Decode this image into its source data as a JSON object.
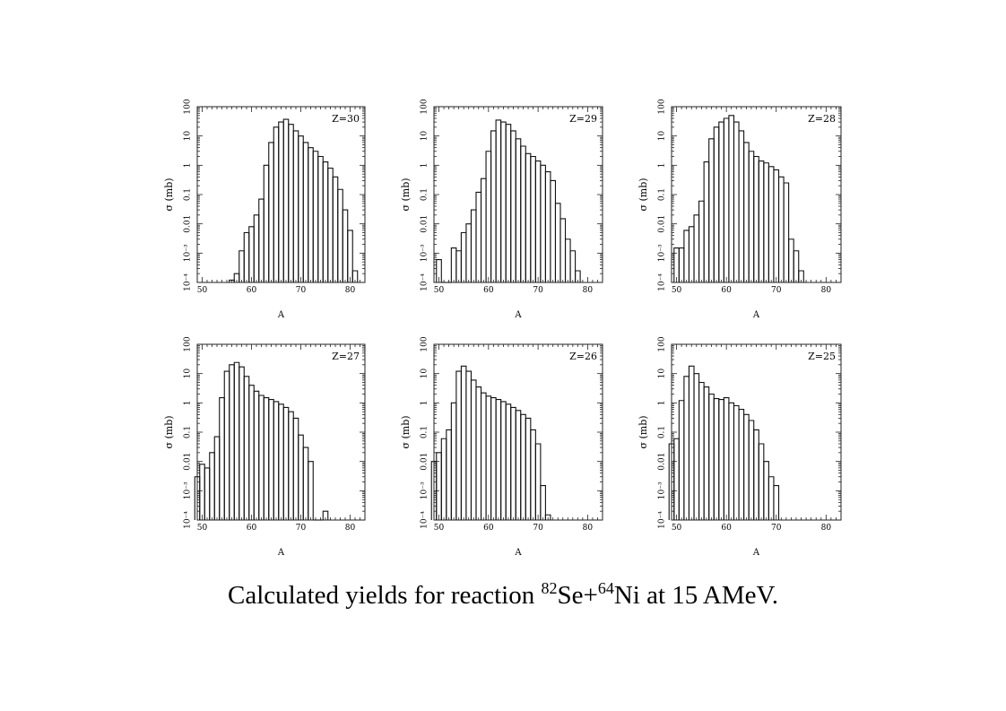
{
  "caption": {
    "part1": "Calculated yields for reaction ",
    "sup1": "82",
    "part2": "Se+",
    "sup2": "64",
    "part3": "Ni at 15 AMeV."
  },
  "chart_data": [
    {
      "type": "step",
      "label": "Z=30",
      "xlabel": "A",
      "ylabel": "σ (mb)",
      "ylog": true,
      "xlim": [
        49,
        83
      ],
      "ylim": [
        0.0001,
        100
      ],
      "xticks": [
        50,
        60,
        70,
        80
      ],
      "ytick_labels": [
        "10⁻⁴",
        "10⁻³",
        "0.01",
        "0.1",
        "1",
        "10",
        "100"
      ],
      "x": [
        56,
        57,
        58,
        59,
        60,
        61,
        62,
        63,
        64,
        65,
        66,
        67,
        68,
        69,
        70,
        71,
        72,
        73,
        74,
        75,
        76,
        77,
        78,
        79,
        80,
        81
      ],
      "values": [
        0.00012,
        0.0002,
        0.0012,
        0.005,
        0.008,
        0.02,
        0.07,
        1.0,
        6,
        20,
        30,
        37,
        25,
        15,
        10,
        6,
        4,
        3,
        2,
        1.3,
        0.8,
        0.4,
        0.15,
        0.03,
        0.006,
        0.00025
      ]
    },
    {
      "type": "step",
      "label": "Z=29",
      "xlabel": "A",
      "ylabel": "σ (mb)",
      "ylog": true,
      "xlim": [
        49,
        83
      ],
      "ylim": [
        0.0001,
        100
      ],
      "xticks": [
        50,
        60,
        70,
        80
      ],
      "ytick_labels": [
        "10⁻⁴",
        "10⁻³",
        "0.01",
        "0.1",
        "1",
        "10",
        "100"
      ],
      "x": [
        50,
        51,
        52,
        53,
        54,
        55,
        56,
        57,
        58,
        59,
        60,
        61,
        62,
        63,
        64,
        65,
        66,
        67,
        68,
        69,
        70,
        71,
        72,
        73,
        74,
        75,
        76,
        77,
        78
      ],
      "values": [
        0.0006,
        0.0001,
        0.0001,
        0.0015,
        0.0012,
        0.005,
        0.01,
        0.03,
        0.12,
        0.35,
        3,
        15,
        35,
        30,
        25,
        15,
        8,
        4.5,
        2.5,
        2.0,
        1.4,
        1.0,
        0.6,
        0.3,
        0.05,
        0.015,
        0.003,
        0.0012,
        0.00025
      ]
    },
    {
      "type": "step",
      "label": "Z=28",
      "xlabel": "A",
      "ylabel": "σ (mb)",
      "ylog": true,
      "xlim": [
        49,
        83
      ],
      "ylim": [
        0.0001,
        100
      ],
      "xticks": [
        50,
        60,
        70,
        80
      ],
      "ytick_labels": [
        "10⁻⁴",
        "10⁻³",
        "0.01",
        "0.1",
        "1",
        "10",
        "100"
      ],
      "x": [
        50,
        51,
        52,
        53,
        54,
        55,
        56,
        57,
        58,
        59,
        60,
        61,
        62,
        63,
        64,
        65,
        66,
        67,
        68,
        69,
        70,
        71,
        72,
        73,
        74,
        75
      ],
      "values": [
        0.0015,
        0.0015,
        0.006,
        0.008,
        0.02,
        0.06,
        1.3,
        8,
        20,
        30,
        40,
        50,
        30,
        15,
        6,
        3,
        2,
        1.4,
        1.2,
        0.9,
        0.7,
        0.4,
        0.25,
        0.003,
        0.0012,
        0.00025
      ]
    },
    {
      "type": "step",
      "label": "Z=27",
      "xlabel": "A",
      "ylabel": "σ (mb)",
      "ylog": true,
      "xlim": [
        49,
        83
      ],
      "ylim": [
        0.0001,
        100
      ],
      "xticks": [
        50,
        60,
        70,
        80
      ],
      "ytick_labels": [
        "10⁻⁴",
        "10⁻³",
        "0.01",
        "0.1",
        "1",
        "10",
        "100"
      ],
      "x": [
        49,
        50,
        51,
        52,
        53,
        54,
        55,
        56,
        57,
        58,
        59,
        60,
        61,
        62,
        63,
        64,
        65,
        66,
        67,
        68,
        69,
        70,
        71,
        72,
        73,
        74,
        75
      ],
      "values": [
        0.003,
        0.008,
        0.006,
        0.02,
        0.07,
        1.5,
        12,
        20,
        24,
        17,
        8,
        4,
        2.5,
        1.8,
        1.5,
        1.3,
        1.1,
        0.9,
        0.7,
        0.5,
        0.3,
        0.08,
        0.03,
        0.01,
        0.0001,
        0.0001,
        0.0002
      ]
    },
    {
      "type": "step",
      "label": "Z=26",
      "xlabel": "A",
      "ylabel": "σ (mb)",
      "ylog": true,
      "xlim": [
        49,
        83
      ],
      "ylim": [
        0.0001,
        100
      ],
      "xticks": [
        50,
        60,
        70,
        80
      ],
      "ytick_labels": [
        "10⁻⁴",
        "10⁻³",
        "0.01",
        "0.1",
        "1",
        "10",
        "100"
      ],
      "x": [
        49,
        50,
        51,
        52,
        53,
        54,
        55,
        56,
        57,
        58,
        59,
        60,
        61,
        62,
        63,
        64,
        65,
        66,
        67,
        68,
        69,
        70,
        71,
        72
      ],
      "values": [
        0.01,
        0.02,
        0.06,
        0.12,
        1.0,
        12,
        18,
        12,
        6,
        3.5,
        2.2,
        1.7,
        1.5,
        1.3,
        1.1,
        0.9,
        0.7,
        0.55,
        0.4,
        0.3,
        0.12,
        0.04,
        0.0015,
        0.00015
      ]
    },
    {
      "type": "step",
      "label": "Z=25",
      "xlabel": "A",
      "ylabel": "σ (mb)",
      "ylog": true,
      "xlim": [
        49,
        83
      ],
      "ylim": [
        0.0001,
        100
      ],
      "xticks": [
        50,
        60,
        70,
        80
      ],
      "ytick_labels": [
        "10⁻⁴",
        "10⁻³",
        "0.01",
        "0.1",
        "1",
        "10",
        "100"
      ],
      "x": [
        49,
        50,
        51,
        52,
        53,
        54,
        55,
        56,
        57,
        58,
        59,
        60,
        61,
        62,
        63,
        64,
        65,
        66,
        67,
        68,
        69,
        70
      ],
      "values": [
        0.04,
        0.06,
        1.2,
        8,
        18,
        10,
        5,
        3.5,
        2.0,
        1.4,
        1.3,
        1.5,
        1.0,
        0.8,
        0.6,
        0.4,
        0.25,
        0.12,
        0.04,
        0.01,
        0.003,
        0.0015
      ]
    }
  ]
}
